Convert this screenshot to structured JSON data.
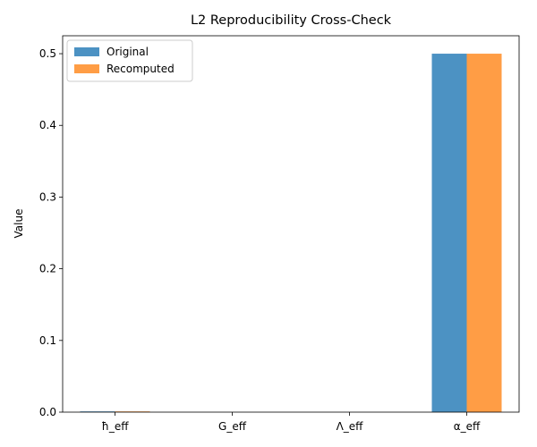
{
  "chart_data": {
    "type": "bar",
    "title": "L2 Reproducibility Cross-Check",
    "xlabel": "",
    "ylabel": "Value",
    "categories": [
      "ħ_eff",
      "G_eff",
      "Λ_eff",
      "α_eff"
    ],
    "series": [
      {
        "name": "Original",
        "values": [
          0.001,
          0.0,
          0.0,
          0.5
        ],
        "color": "#4c92c3"
      },
      {
        "name": "Recomputed",
        "values": [
          0.001,
          0.0,
          0.0,
          0.5
        ],
        "color": "#ff9d45"
      }
    ],
    "ylim": [
      0,
      0.525
    ],
    "yticks": [
      0.0,
      0.1,
      0.2,
      0.3,
      0.4,
      0.5
    ],
    "ytick_labels": [
      "0.0",
      "0.1",
      "0.2",
      "0.3",
      "0.4",
      "0.5"
    ],
    "grid": false,
    "legend": "top-left"
  }
}
